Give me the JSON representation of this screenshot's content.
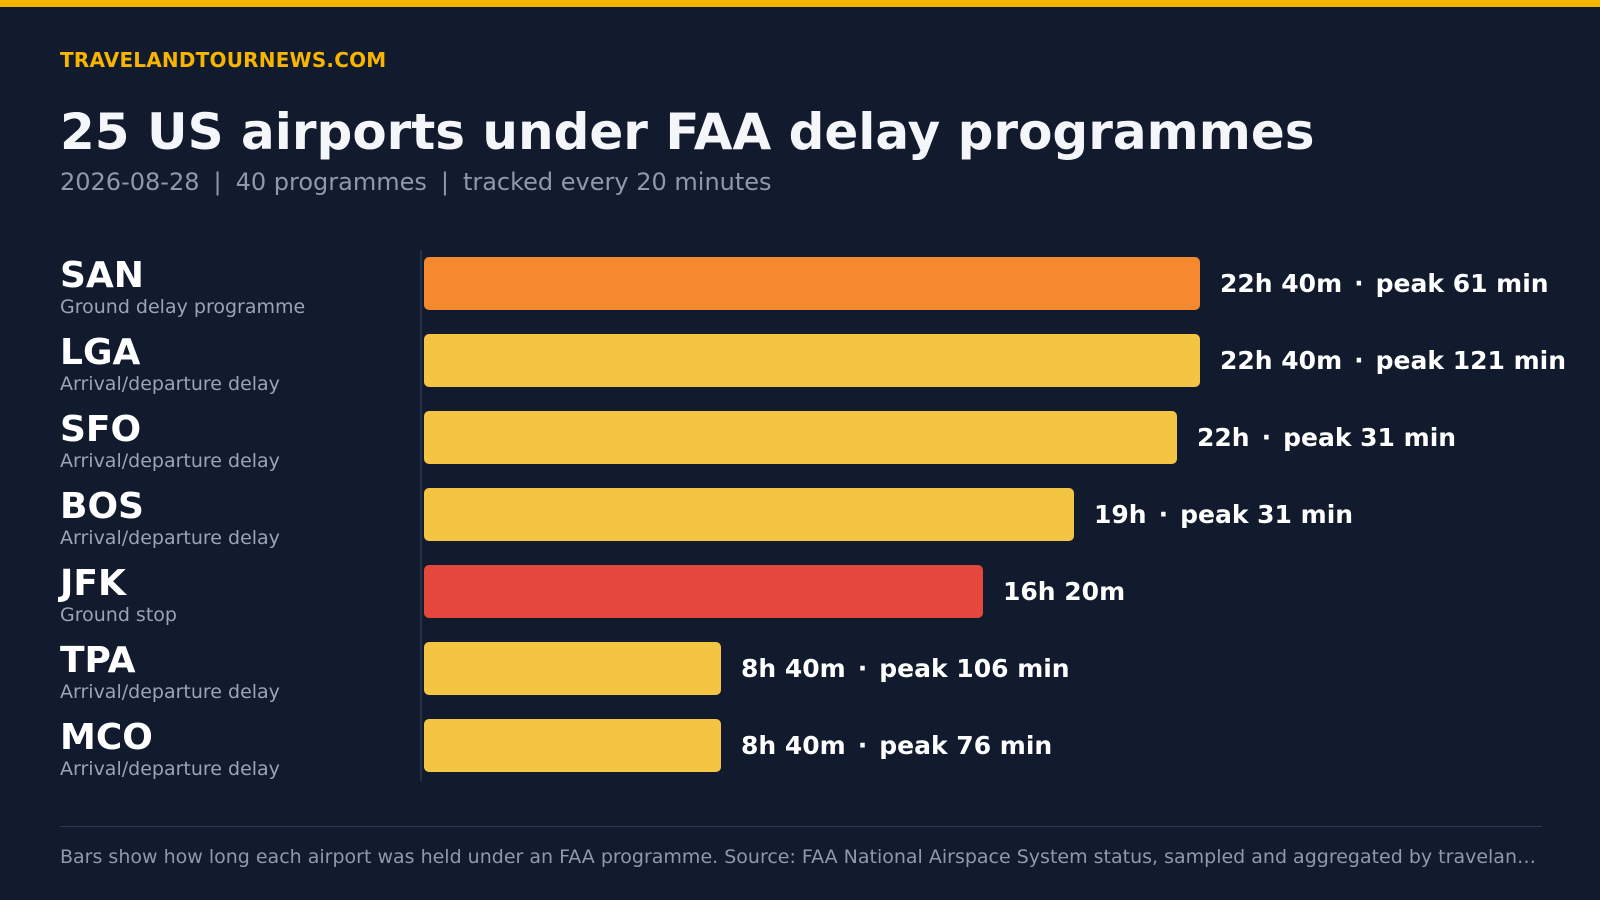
{
  "brand": "TRAVELANDTOURNEWS.COM",
  "title": "25 US airports under FAA delay programmes",
  "subtitle": {
    "date": "2026-08-28",
    "programmes": "40 programmes",
    "cadence": "tracked every 20 minutes",
    "separator": "|"
  },
  "footer": "Bars show how long each airport was held under an FAA programme. Source: FAA National Airspace System status, sampled and aggregated by travelandtour…",
  "colors": {
    "accent": "#f7b500",
    "ground_delay": "#f5892f",
    "arrival_departure": "#f4c542",
    "ground_stop": "#e4473b"
  },
  "chart_data": {
    "type": "bar",
    "orientation": "horizontal",
    "unit": "hours",
    "categories": [
      "SAN",
      "LGA",
      "SFO",
      "BOS",
      "JFK",
      "TPA",
      "MCO"
    ],
    "values": [
      22.667,
      22.667,
      22.0,
      19.0,
      16.333,
      8.667,
      8.667
    ],
    "rows": [
      {
        "code": "SAN",
        "programme": "Ground delay programme",
        "hours": 22.667,
        "duration": "22h 40m",
        "peak": "peak 61 min",
        "color": "#f5892f"
      },
      {
        "code": "LGA",
        "programme": "Arrival/departure delay",
        "hours": 22.667,
        "duration": "22h 40m",
        "peak": "peak 121 min",
        "color": "#f4c542"
      },
      {
        "code": "SFO",
        "programme": "Arrival/departure delay",
        "hours": 22.0,
        "duration": "22h",
        "peak": "peak 31 min",
        "color": "#f4c542"
      },
      {
        "code": "BOS",
        "programme": "Arrival/departure delay",
        "hours": 19.0,
        "duration": "19h",
        "peak": "peak 31 min",
        "color": "#f4c542"
      },
      {
        "code": "JFK",
        "programme": "Ground stop",
        "hours": 16.333,
        "duration": "16h 20m",
        "peak": "",
        "color": "#e4473b"
      },
      {
        "code": "TPA",
        "programme": "Arrival/departure delay",
        "hours": 8.667,
        "duration": "8h 40m",
        "peak": "peak 106 min",
        "color": "#f4c542"
      },
      {
        "code": "MCO",
        "programme": "Arrival/departure delay",
        "hours": 8.667,
        "duration": "8h 40m",
        "peak": "peak 76 min",
        "color": "#f4c542"
      }
    ],
    "legend": "none",
    "grid": false
  }
}
